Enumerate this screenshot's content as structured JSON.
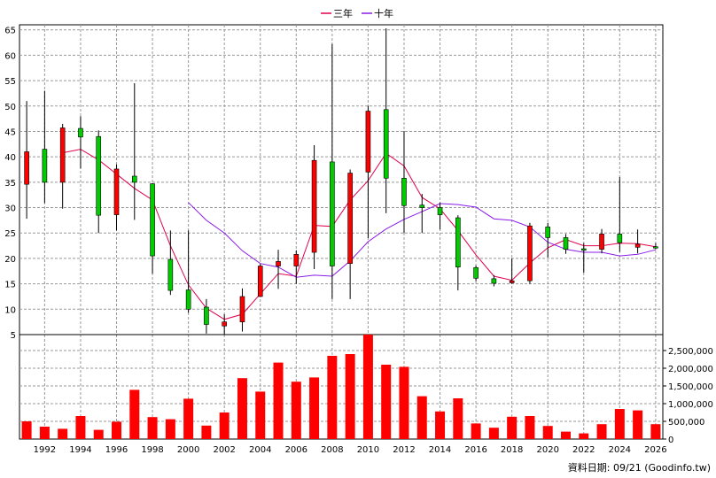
{
  "legend": [
    {
      "label": "三年",
      "color": "#e0004e"
    },
    {
      "label": "十年",
      "color": "#8a1ce6"
    }
  ],
  "source_note": "資料日期: 09/21 (Goodinfo.tw)",
  "colors": {
    "up": "#ff0000",
    "down": "#00cc00",
    "volume": "#ff0000",
    "ma3": "#e0004e",
    "ma10": "#8a1ce6",
    "grid": "#999999"
  },
  "chart_data": [
    {
      "type": "candlestick",
      "ylim": [
        5,
        66
      ],
      "y_ticks": [
        5,
        10,
        15,
        20,
        25,
        30,
        35,
        40,
        45,
        50,
        55,
        60,
        65
      ],
      "xlim": [
        1990.6,
        2026.4
      ],
      "x_ticks": [
        "1992",
        "1994",
        "1996",
        "1998",
        "2000",
        "2002",
        "2004",
        "2006",
        "2008",
        "2010",
        "2012",
        "2014",
        "2016",
        "2018",
        "2020",
        "2022",
        "2024",
        "2026"
      ],
      "grid": true,
      "legend_position": "top-center",
      "candles": [
        {
          "year": 1991,
          "open": 34.6,
          "close": 41.0,
          "high": 51.0,
          "low": 27.8
        },
        {
          "year": 1992,
          "open": 41.5,
          "close": 35.0,
          "high": 53.0,
          "low": 30.9
        },
        {
          "year": 1993,
          "open": 35.0,
          "close": 45.7,
          "high": 46.5,
          "low": 29.8
        },
        {
          "year": 1994,
          "open": 45.6,
          "close": 43.9,
          "high": 48.0,
          "low": 37.7
        },
        {
          "year": 1995,
          "open": 44.0,
          "close": 28.5,
          "high": 45.2,
          "low": 25.0
        },
        {
          "year": 1996,
          "open": 28.6,
          "close": 37.6,
          "high": 38.5,
          "low": 25.5
        },
        {
          "year": 1997,
          "open": 36.2,
          "close": 35.0,
          "high": 54.5,
          "low": 27.6
        },
        {
          "year": 1998,
          "open": 34.7,
          "close": 20.5,
          "high": 34.8,
          "low": 17.0
        },
        {
          "year": 1999,
          "open": 19.8,
          "close": 13.7,
          "high": 25.5,
          "low": 12.8
        },
        {
          "year": 2000,
          "open": 13.8,
          "close": 10.0,
          "high": 25.5,
          "low": 9.3
        },
        {
          "year": 2001,
          "open": 10.4,
          "close": 7.0,
          "high": 12.0,
          "low": 5.2
        },
        {
          "year": 2002,
          "open": 6.7,
          "close": 7.5,
          "high": 9.0,
          "low": 5.0
        },
        {
          "year": 2003,
          "open": 7.5,
          "close": 12.5,
          "high": 14.1,
          "low": 5.6
        },
        {
          "year": 2004,
          "open": 12.5,
          "close": 18.5,
          "high": 18.9,
          "low": 12.5
        },
        {
          "year": 2005,
          "open": 18.5,
          "close": 19.4,
          "high": 21.7,
          "low": 14.0
        },
        {
          "year": 2006,
          "open": 18.5,
          "close": 20.8,
          "high": 21.6,
          "low": 15.0
        },
        {
          "year": 2007,
          "open": 21.2,
          "close": 39.3,
          "high": 42.3,
          "low": 17.9
        },
        {
          "year": 2008,
          "open": 39.0,
          "close": 18.5,
          "high": 62.2,
          "low": 12.0
        },
        {
          "year": 2009,
          "open": 19.0,
          "close": 36.8,
          "high": 37.5,
          "low": 12.0
        },
        {
          "year": 2010,
          "open": 37.0,
          "close": 49.0,
          "high": 50.0,
          "low": 24.0
        },
        {
          "year": 2011,
          "open": 49.3,
          "close": 35.8,
          "high": 65.3,
          "low": 28.9
        },
        {
          "year": 2012,
          "open": 35.8,
          "close": 30.4,
          "high": 45.1,
          "low": 25.0
        },
        {
          "year": 2013,
          "open": 30.5,
          "close": 30.0,
          "high": 32.7,
          "low": 25.0
        },
        {
          "year": 2014,
          "open": 30.0,
          "close": 28.6,
          "high": 31.0,
          "low": 25.7
        },
        {
          "year": 2015,
          "open": 28.0,
          "close": 18.3,
          "high": 28.5,
          "low": 13.7
        },
        {
          "year": 2016,
          "open": 18.2,
          "close": 16.1,
          "high": 18.6,
          "low": 15.5
        },
        {
          "year": 2017,
          "open": 16.0,
          "close": 15.1,
          "high": 16.7,
          "low": 14.5
        },
        {
          "year": 2018,
          "open": 15.2,
          "close": 15.6,
          "high": 20.0,
          "low": 15.0
        },
        {
          "year": 2019,
          "open": 15.6,
          "close": 26.4,
          "high": 27.0,
          "low": 15.0
        },
        {
          "year": 2020,
          "open": 26.2,
          "close": 24.1,
          "high": 27.0,
          "low": 20.2
        },
        {
          "year": 2021,
          "open": 24.1,
          "close": 21.8,
          "high": 24.8,
          "low": 20.9
        },
        {
          "year": 2022,
          "open": 21.9,
          "close": 21.6,
          "high": 23.0,
          "low": 17.2
        },
        {
          "year": 2023,
          "open": 21.8,
          "close": 24.8,
          "high": 25.8,
          "low": 21.0
        },
        {
          "year": 2024,
          "open": 24.8,
          "close": 23.1,
          "high": 36.0,
          "low": 21.3
        },
        {
          "year": 2025,
          "open": 22.2,
          "close": 22.8,
          "high": 25.7,
          "low": 21.0
        },
        {
          "year": 2026,
          "open": 22.3,
          "close": 22.1,
          "high": 23.0,
          "low": 21.8
        }
      ],
      "series": [
        {
          "name": "三年",
          "x": [
            1993,
            1994,
            1995,
            1996,
            1997,
            1998,
            1999,
            2000,
            2001,
            2002,
            2003,
            2004,
            2005,
            2006,
            2007,
            2008,
            2009,
            2010,
            2011,
            2012,
            2013,
            2014,
            2015,
            2016,
            2017,
            2018,
            2019,
            2020,
            2021,
            2022,
            2023,
            2024,
            2025,
            2026
          ],
          "values": [
            40.8,
            41.5,
            39.4,
            36.6,
            33.8,
            31.5,
            22.5,
            14.8,
            10.2,
            8.0,
            9.0,
            13.0,
            17.0,
            16.5,
            26.5,
            26.3,
            31.5,
            35.3,
            40.7,
            38.2,
            32.0,
            29.8,
            25.5,
            20.7,
            16.5,
            15.7,
            19.1,
            22.1,
            23.7,
            22.5,
            22.5,
            23.0,
            22.9,
            22.3
          ]
        },
        {
          "name": "十年",
          "x": [
            2000,
            2001,
            2002,
            2003,
            2004,
            2005,
            2006,
            2007,
            2008,
            2009,
            2010,
            2011,
            2012,
            2013,
            2014,
            2015,
            2016,
            2017,
            2018,
            2019,
            2020,
            2021,
            2022,
            2023,
            2024,
            2025,
            2026
          ],
          "values": [
            31.0,
            27.5,
            25.0,
            21.5,
            19.0,
            18.3,
            16.3,
            16.7,
            16.5,
            19.5,
            23.3,
            25.8,
            27.7,
            29.2,
            30.8,
            30.6,
            30.1,
            27.8,
            27.5,
            26.2,
            23.2,
            21.8,
            21.2,
            21.2,
            20.5,
            20.8,
            21.7
          ]
        }
      ]
    },
    {
      "type": "bar",
      "ylim": [
        0,
        2950000
      ],
      "y_tick_labels": [
        "0",
        "500,000",
        "1,000,000",
        "1,500,000",
        "2,000,000",
        "2,500,000"
      ],
      "y_tick_values": [
        0,
        500000,
        1000000,
        1500000,
        2000000,
        2500000
      ],
      "years": [
        1991,
        1992,
        1993,
        1994,
        1995,
        1996,
        1997,
        1998,
        1999,
        2000,
        2001,
        2002,
        2003,
        2004,
        2005,
        2006,
        2007,
        2008,
        2009,
        2010,
        2011,
        2012,
        2013,
        2014,
        2015,
        2016,
        2017,
        2018,
        2019,
        2020,
        2021,
        2022,
        2023,
        2024,
        2025,
        2026
      ],
      "values": [
        500000,
        350000,
        290000,
        650000,
        260000,
        490000,
        1390000,
        620000,
        560000,
        1140000,
        380000,
        750000,
        1720000,
        1340000,
        2160000,
        1620000,
        1740000,
        2350000,
        2400000,
        2970000,
        2100000,
        2040000,
        1210000,
        780000,
        1150000,
        440000,
        320000,
        630000,
        650000,
        370000,
        210000,
        160000,
        420000,
        850000,
        810000,
        420000
      ]
    }
  ]
}
